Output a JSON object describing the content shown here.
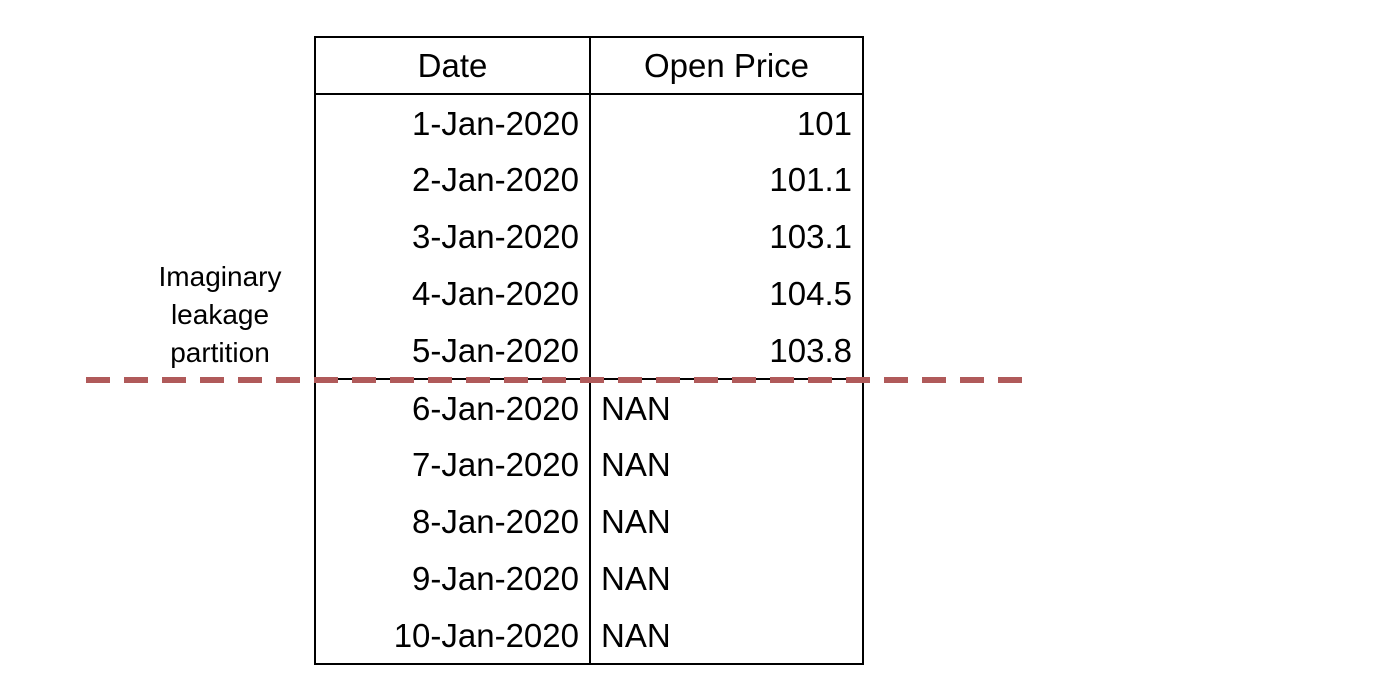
{
  "table": {
    "headers": {
      "date": "Date",
      "open_price": "Open Price"
    },
    "rows": [
      {
        "date": "1-Jan-2020",
        "open_price": "101"
      },
      {
        "date": "2-Jan-2020",
        "open_price": "101.1"
      },
      {
        "date": "3-Jan-2020",
        "open_price": "103.1"
      },
      {
        "date": "4-Jan-2020",
        "open_price": "104.5"
      },
      {
        "date": "5-Jan-2020",
        "open_price": "103.8"
      },
      {
        "date": "6-Jan-2020",
        "open_price": "NAN"
      },
      {
        "date": "7-Jan-2020",
        "open_price": "NAN"
      },
      {
        "date": "8-Jan-2020",
        "open_price": "NAN"
      },
      {
        "date": "9-Jan-2020",
        "open_price": "NAN"
      },
      {
        "date": "10-Jan-2020",
        "open_price": "NAN"
      }
    ]
  },
  "partition": {
    "label_lines": [
      "Imaginary",
      "leakage",
      "partition"
    ],
    "line_color": "#b05a5a",
    "line_style": "dashed"
  }
}
